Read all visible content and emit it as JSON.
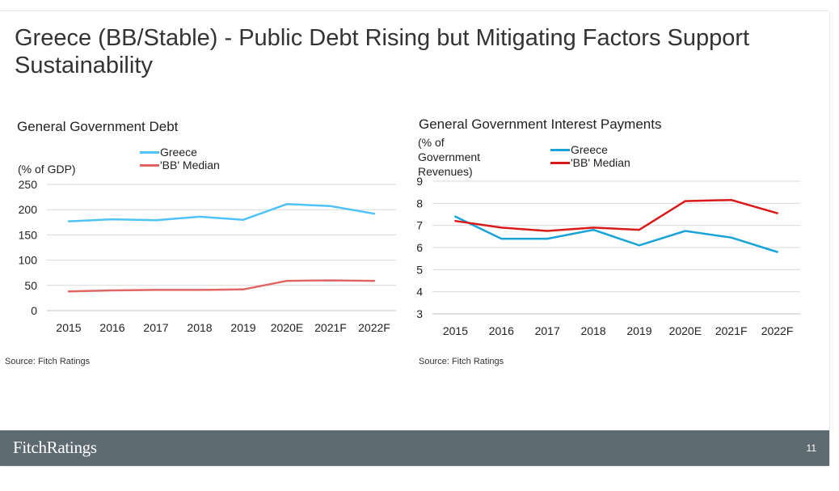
{
  "slide": {
    "title": "Greece (BB/Stable) -  Public Debt Rising but Mitigating Factors Support Sustainability",
    "footer": {
      "logo": "FitchRatings",
      "page_number": "11"
    }
  },
  "left": {
    "title": "General Government Debt",
    "ylabel": "(% of GDP)",
    "source": "Source: Fitch Ratings"
  },
  "right": {
    "title": "General Government Interest Payments",
    "ylabel": "(% of Government Revenues)",
    "source": "Source: Fitch Ratings"
  },
  "colors": {
    "greece_left": "#4fc3f7",
    "bb_left": "#e06666",
    "greece_right": "#1aa3d9",
    "bb_right": "#d91a1a",
    "footer": "#5e6a71",
    "grid": "#d9d9d9"
  },
  "chart_data": [
    {
      "type": "line",
      "title": "General Government Debt",
      "ylabel": "(% of GDP)",
      "xlabel": "",
      "categories": [
        "2015",
        "2016",
        "2017",
        "2018",
        "2019",
        "2020E",
        "2021F",
        "2022F"
      ],
      "ylim": [
        0,
        250
      ],
      "yticks": [
        0,
        50,
        100,
        150,
        200,
        250
      ],
      "grid": true,
      "legend": "top-center",
      "series": [
        {
          "name": "Greece",
          "color": "#4fc3f7",
          "values": [
            177,
            181,
            179,
            186,
            180,
            211,
            207,
            192
          ]
        },
        {
          "name": "'BB' Median",
          "color": "#e06666",
          "values": [
            38,
            40,
            41,
            41,
            42,
            59,
            60,
            59
          ]
        }
      ]
    },
    {
      "type": "line",
      "title": "General Government Interest Payments",
      "ylabel": "(% of Government Revenues)",
      "xlabel": "",
      "categories": [
        "2015",
        "2016",
        "2017",
        "2018",
        "2019",
        "2020E",
        "2021F",
        "2022F"
      ],
      "ylim": [
        3,
        9
      ],
      "yticks": [
        3,
        4,
        5,
        6,
        7,
        8,
        9
      ],
      "grid": true,
      "legend": "top-center",
      "series": [
        {
          "name": "Greece",
          "color": "#1aa3d9",
          "values": [
            7.4,
            6.4,
            6.4,
            6.8,
            6.1,
            6.75,
            6.45,
            5.8
          ]
        },
        {
          "name": "'BB' Median",
          "color": "#d91a1a",
          "values": [
            7.2,
            6.9,
            6.75,
            6.9,
            6.8,
            8.1,
            8.15,
            7.55
          ]
        }
      ]
    }
  ]
}
